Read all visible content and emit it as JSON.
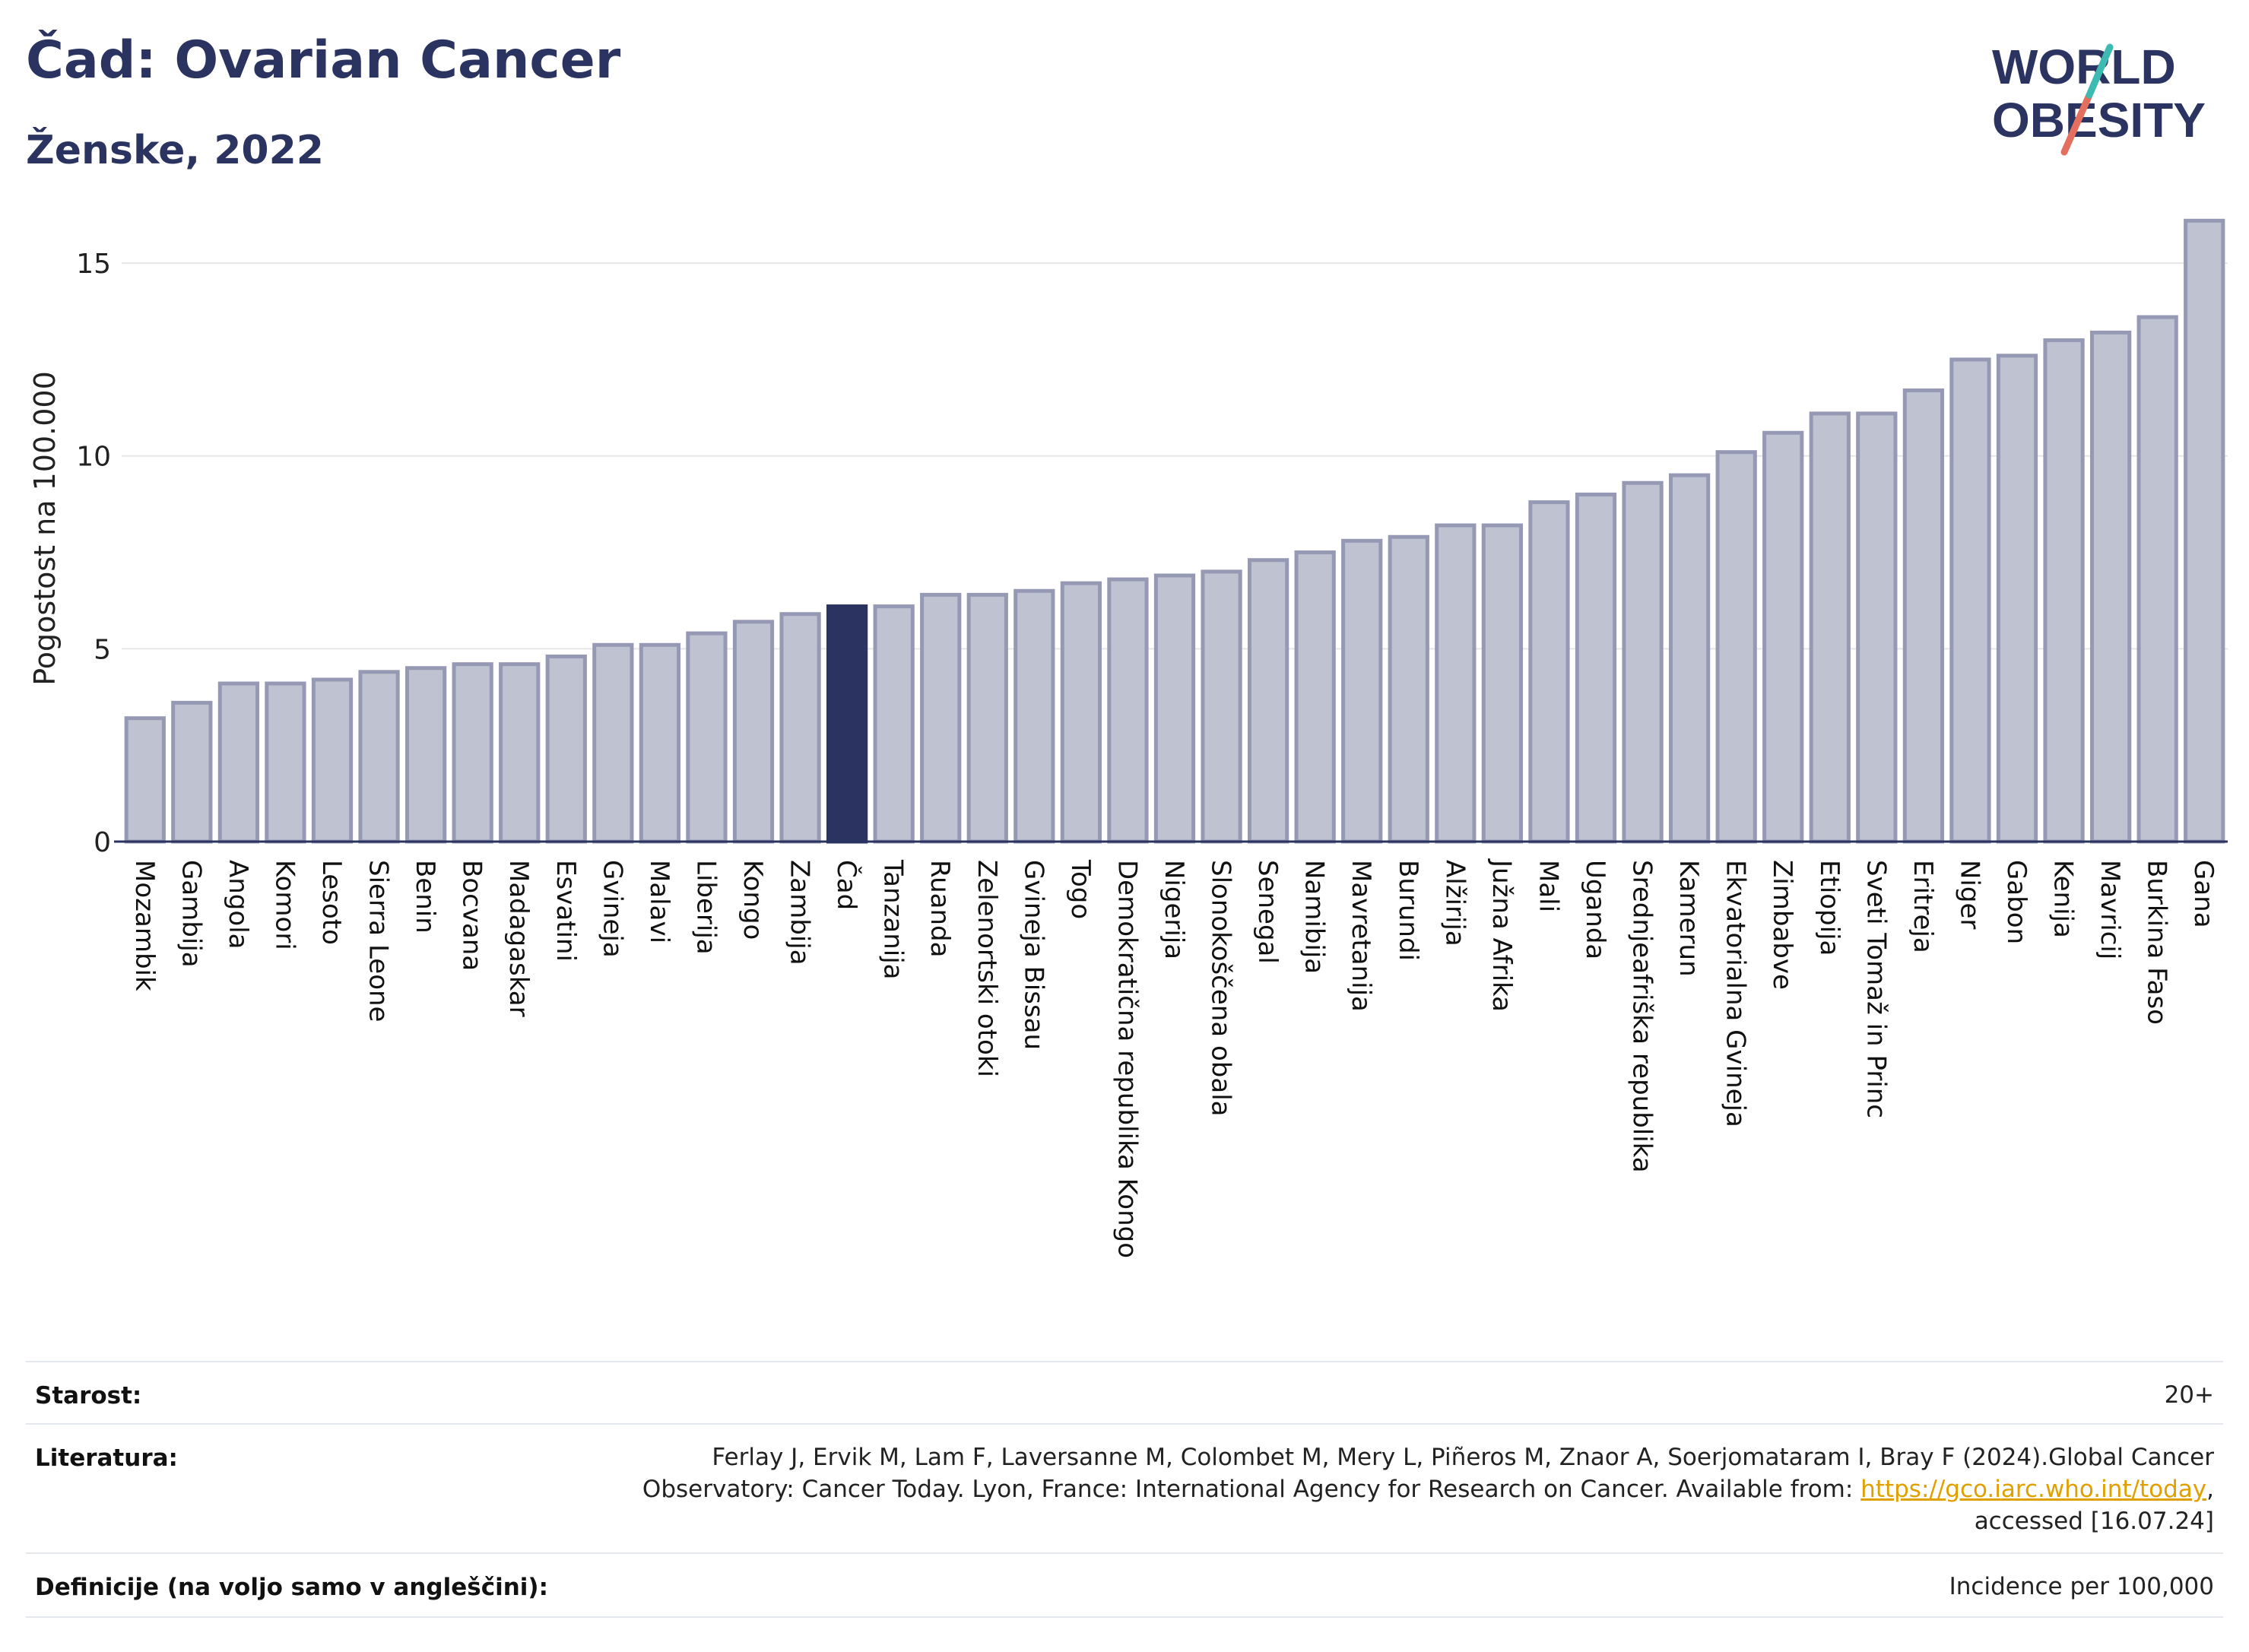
{
  "header": {
    "title": "Čad: Ovarian Cancer",
    "subtitle": "Ženske, 2022",
    "logo_line1": "WORLD",
    "logo_line2": "OBESITY"
  },
  "chart_data": {
    "type": "bar",
    "title": "Čad: Ovarian Cancer",
    "subtitle": "Ženske, 2022",
    "xlabel": "",
    "ylabel": "Pogostost na 100.000",
    "ylim": [
      0,
      16.5
    ],
    "yticks": [
      0,
      5,
      10,
      15
    ],
    "grid": true,
    "highlight": "Čad",
    "colors": {
      "bar": "#bfc2d0",
      "bar_edge": "#9599b3",
      "highlight": "#2b3461",
      "grid": "#e6e6e6",
      "axis": "#2b3461"
    },
    "categories": [
      "Mozambik",
      "Gambija",
      "Angola",
      "Komori",
      "Lesoto",
      "Sierra Leone",
      "Benin",
      "Bocvana",
      "Madagaskar",
      "Esvatini",
      "Gvineja",
      "Malavi",
      "Liberija",
      "Kongo",
      "Zambija",
      "Čad",
      "Tanzanija",
      "Ruanda",
      "Zelenortski otoki",
      "Gvineja Bissau",
      "Togo",
      "Demokratična republika Kongo",
      "Nigerija",
      "Slonokoščena obala",
      "Senegal",
      "Namibija",
      "Mavretanija",
      "Burundi",
      "Alžirija",
      "Južna Afrika",
      "Mali",
      "Uganda",
      "Srednjeafriška republika",
      "Kamerun",
      "Ekvatorialna Gvineja",
      "Zimbabve",
      "Etiopija",
      "Sveti Tomaž in Princ",
      "Eritreja",
      "Niger",
      "Gabon",
      "Kenija",
      "Mavricij",
      "Burkina Faso",
      "Gana"
    ],
    "values": [
      3.2,
      3.6,
      4.1,
      4.1,
      4.2,
      4.4,
      4.5,
      4.6,
      4.6,
      4.8,
      5.1,
      5.1,
      5.4,
      5.7,
      5.9,
      6.1,
      6.1,
      6.4,
      6.4,
      6.5,
      6.7,
      6.8,
      6.9,
      7.0,
      7.3,
      7.5,
      7.8,
      7.9,
      8.2,
      8.2,
      8.8,
      9.0,
      9.3,
      9.5,
      10.1,
      10.6,
      11.1,
      11.1,
      11.7,
      12.5,
      12.6,
      13.0,
      13.2,
      13.6,
      16.1
    ]
  },
  "meta": {
    "age_label": "Starost:",
    "age_value": "20+",
    "lit_label": "Literatura:",
    "lit_line1": "Ferlay J, Ervik M, Lam F, Laversanne M, Colombet M, Mery L, Piñeros M, Znaor A, Soerjomataram I, Bray F (2024).Global Cancer",
    "lit_line2_pre": "Observatory: Cancer Today. Lyon, France: International Agency for Research on Cancer. Available from: ",
    "lit_link": "https://gco.iarc.who.int/today",
    "lit_line2_post": ",",
    "lit_line3": "accessed [16.07.24]",
    "def_label": "Definicije (na voljo samo v angleščini):",
    "def_value": "Incidence per 100,000"
  }
}
